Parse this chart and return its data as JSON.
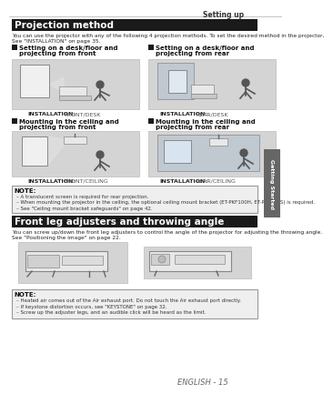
{
  "page_title": "Setting up",
  "section1_title": "Projection method",
  "section1_desc_line1": "You can use the projector with any of the following 4 projection methods. To set the desired method in the projector,",
  "section1_desc_line2": "See \"INSTALLATION\" on page 35.",
  "item1_title_line1": "Setting on a desk/floor and",
  "item1_title_line2": "projecting from front",
  "item2_title_line1": "Setting on a desk/floor and",
  "item2_title_line2": "projecting from rear",
  "item3_title_line1": "Mounting in the ceiling and",
  "item3_title_line2": "projecting from front",
  "item4_title_line1": "Mounting in the ceiling and",
  "item4_title_line2": "projecting from rear",
  "install_label": "INSTALLATION:",
  "install1": "FRONT/DESK",
  "install2": "REAR/DESK",
  "install3": "FRONT/CEILING",
  "install4": "REAR/CEILING",
  "note1_title": "NOTE:",
  "note1_b1": "A translucent screen is required for rear projection.",
  "note1_b2": "When mounting the projector in the ceiling, the optional ceiling mount bracket (ET-PKF100H, ET-PKF100S) is required.",
  "note1_b3": "See \"Ceiling mount bracket safeguards\" on page 42.",
  "section2_title": "Front leg adjusters and throwing angle",
  "section2_desc_line1": "You can screw up/down the front leg adjusters to control the angle of the projector for adjusting the throwing angle.",
  "section2_desc_line2": "See \"Positioning the image\" on page 22.",
  "note2_title": "NOTE:",
  "note2_b1": "Heated air comes out of the Air exhaust port. Do not touch the Air exhaust port directly.",
  "note2_b2": "If keystone distortion occurs, see \"KEYSTONE\" on page 32.",
  "note2_b3": "Screw up the adjuster legs, and an audible click will be heard as the limit.",
  "footer": "ENGLISH - 15",
  "tab_text": "Getting Started",
  "bg": "#ffffff",
  "sec_title_bg": "#1a1a1a",
  "sec_title_fg": "#ffffff",
  "note_bg": "#efefef",
  "note_border": "#999999",
  "img_bg": "#d4d4d4",
  "img_inner": "#e8e8e8",
  "tab_bg": "#666666",
  "tab_fg": "#ffffff",
  "header_color": "#333333",
  "lbl_color": "#222222",
  "lbl_value_color": "#555555",
  "text_color": "#222222",
  "line_color": "#aaaaaa"
}
